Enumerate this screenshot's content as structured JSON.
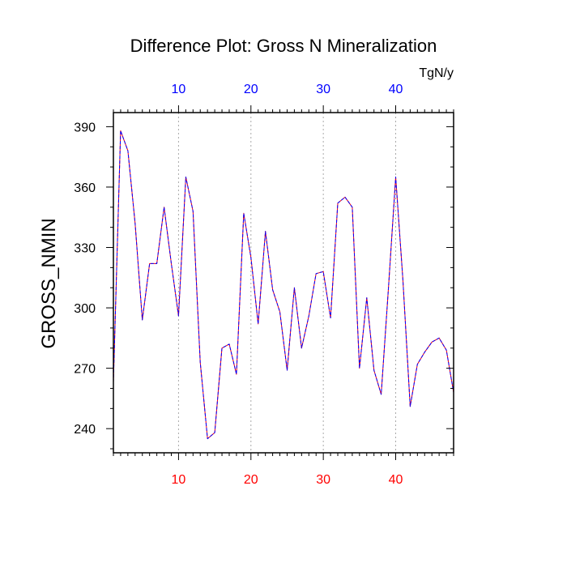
{
  "chart_data": {
    "type": "line",
    "title": "Difference Plot: Gross N Mineralization",
    "units": "TgN/y",
    "xlabel": "",
    "ylabel": "GROSS_NMIN",
    "xlim": [
      1,
      48
    ],
    "ylim": [
      228,
      397
    ],
    "x_ticks": [
      10,
      20,
      30,
      40
    ],
    "x_tick_labels": [
      "10",
      "20",
      "30",
      "40"
    ],
    "y_ticks": [
      240,
      270,
      300,
      330,
      360,
      390
    ],
    "y_tick_labels": [
      "240",
      "270",
      "300",
      "330",
      "360",
      "390"
    ],
    "grid": "vertical dotted at major x ticks",
    "colors": {
      "bottom_tick_labels": "#ff0000",
      "top_tick_labels": "#0000ff",
      "series_a": "#ff0000",
      "series_b": "#0000ff"
    },
    "x": [
      1,
      2,
      3,
      4,
      5,
      6,
      7,
      8,
      9,
      10,
      11,
      12,
      13,
      14,
      15,
      16,
      17,
      18,
      19,
      20,
      21,
      22,
      23,
      24,
      25,
      26,
      27,
      28,
      29,
      30,
      31,
      32,
      33,
      34,
      35,
      36,
      37,
      38,
      39,
      40,
      41,
      42,
      43,
      44,
      45,
      46,
      47,
      48
    ],
    "series": [
      {
        "values": [
          263,
          388,
          378,
          342,
          294,
          322,
          322,
          350,
          322,
          296,
          365,
          348,
          273,
          235,
          238,
          280,
          282,
          267,
          347,
          325,
          292,
          338,
          309,
          298,
          269,
          310,
          280,
          296,
          317,
          318,
          295,
          352,
          355,
          350,
          270,
          305,
          269,
          257,
          310,
          365,
          314,
          251,
          272,
          278,
          283,
          285,
          279,
          258
        ],
        "color": "#ff0000"
      },
      {
        "values": [
          263,
          388,
          378,
          342,
          294,
          322,
          322,
          350,
          322,
          296,
          365,
          348,
          273,
          235,
          238,
          280,
          282,
          267,
          347,
          325,
          292,
          338,
          309,
          298,
          269,
          310,
          280,
          296,
          317,
          318,
          295,
          352,
          355,
          350,
          270,
          305,
          269,
          257,
          310,
          365,
          314,
          251,
          272,
          278,
          283,
          285,
          279,
          258
        ],
        "color": "#0000ff"
      }
    ]
  }
}
